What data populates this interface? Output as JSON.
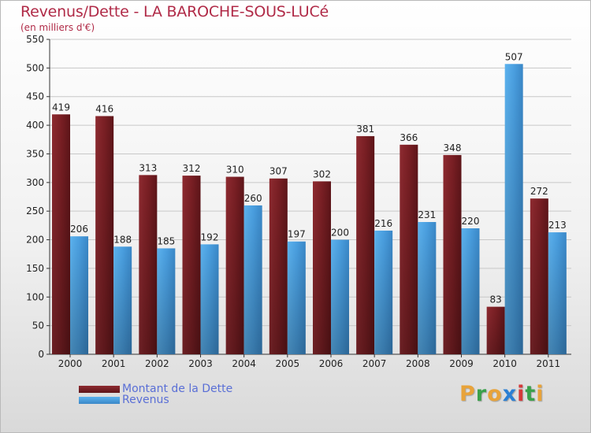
{
  "chart_data": {
    "type": "bar",
    "title": "Revenus/Dette - LA BAROCHE-SOUS-LUCé",
    "subtitle": "(en milliers d'€)",
    "categories": [
      "2000",
      "2001",
      "2002",
      "2003",
      "2004",
      "2005",
      "2006",
      "2007",
      "2008",
      "2009",
      "2010",
      "2011"
    ],
    "series": [
      {
        "name": "Montant de la Dette",
        "color": "#7a1f24",
        "values": [
          419,
          416,
          313,
          312,
          310,
          307,
          302,
          381,
          366,
          348,
          83,
          272
        ]
      },
      {
        "name": "Revenus",
        "color": "#4a9fe0",
        "values": [
          206,
          188,
          185,
          192,
          260,
          197,
          200,
          216,
          231,
          220,
          507,
          213
        ]
      }
    ],
    "yticks": [
      "0",
      "50",
      "100",
      "150",
      "200",
      "250",
      "300",
      "350",
      "400",
      "450",
      "500",
      "550"
    ],
    "ylim": [
      0,
      550
    ],
    "grid": true,
    "legend": "bottom-left"
  },
  "logo": {
    "letters": [
      "P",
      "r",
      "o",
      "x",
      "i",
      "t",
      "i"
    ],
    "colors": [
      "#e8a33a",
      "#3aa14a",
      "#e8a33a",
      "#2a7fd4",
      "#d43a3a",
      "#3aa14a",
      "#e8a33a"
    ]
  }
}
